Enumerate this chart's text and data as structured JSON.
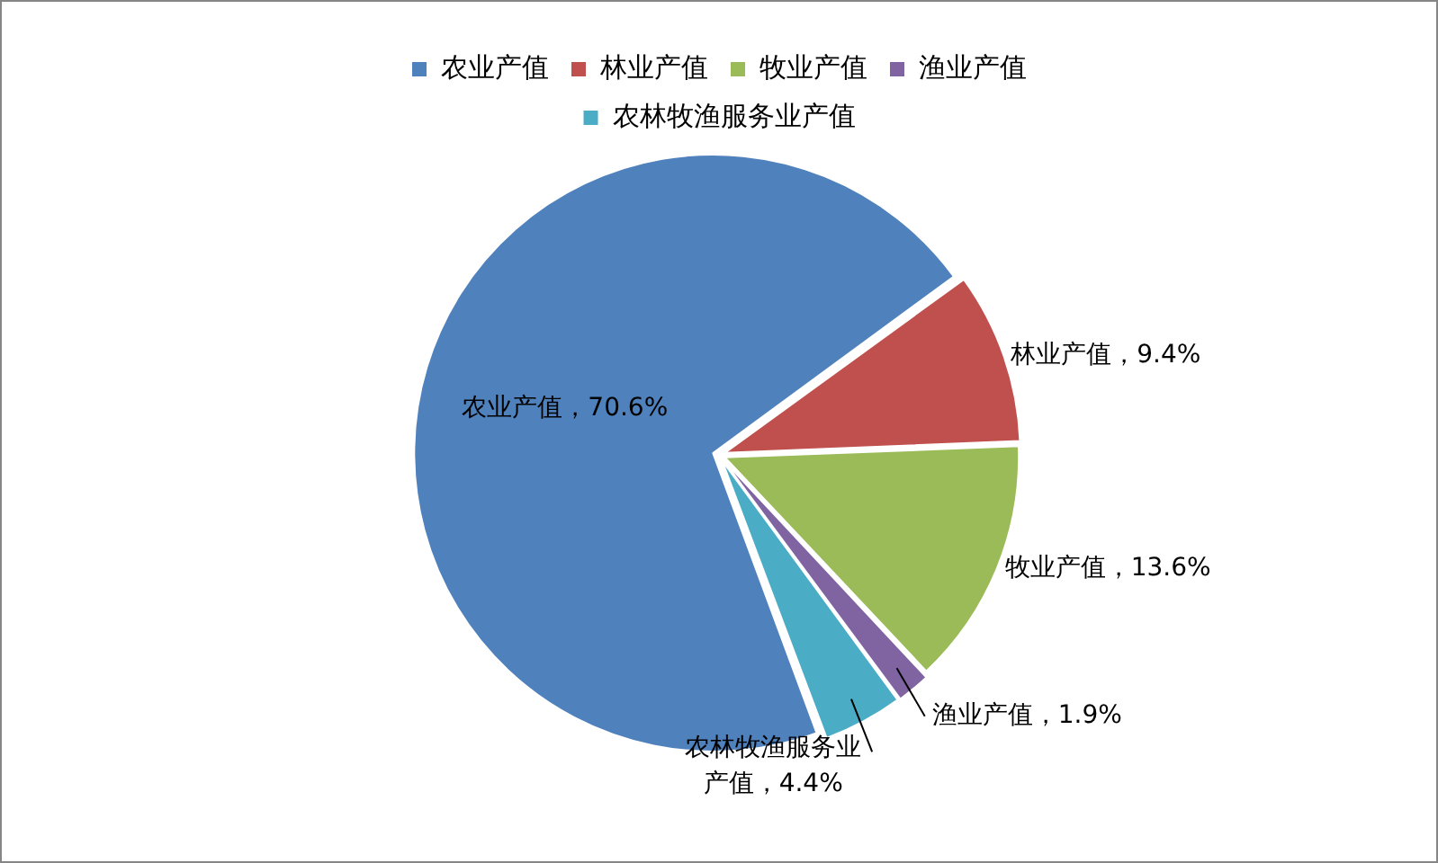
{
  "chart_data": {
    "type": "pie",
    "categories": [
      "农业产值",
      "林业产值",
      "牧业产值",
      "渔业产值",
      "农林牧渔服务业产值"
    ],
    "values": [
      70.6,
      9.4,
      13.6,
      1.9,
      4.4
    ],
    "colors": [
      "#4f81bd",
      "#c0504d",
      "#9bbb59",
      "#8064a2",
      "#4bacc6"
    ],
    "value_labels": [
      "农业产值，70.6%",
      "林业产值，9.4%",
      "牧业产值，13.6%",
      "渔业产值，1.9%",
      "农林牧渔服务业产值，4.4%"
    ],
    "legend": "top"
  }
}
